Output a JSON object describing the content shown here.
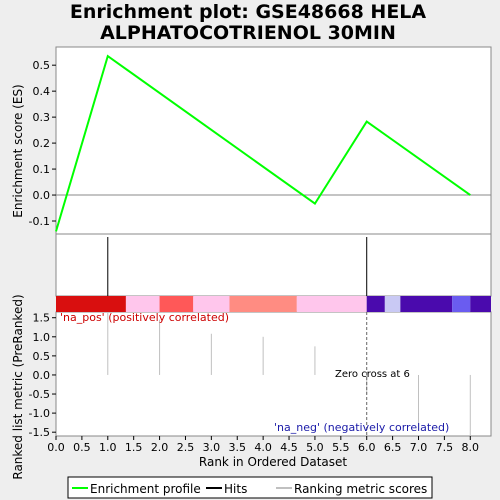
{
  "title_line1": "Enrichment plot: GSE48668 HELA",
  "title_line2": "ALPHATOCOTRIENOL 30MIN",
  "chart_data": {
    "type": "line",
    "title": "Enrichment plot: GSE48668 HELA ALPHATOCOTRIENOL 30MIN",
    "xlabel": "Rank in Ordered Dataset",
    "xlim": [
      0,
      8.4
    ],
    "x_ticks": [
      "0.0",
      "0.5",
      "1.0",
      "1.5",
      "2.0",
      "2.5",
      "3.0",
      "3.5",
      "4.0",
      "4.5",
      "5.0",
      "5.5",
      "6.0",
      "6.5",
      "7.0",
      "7.5",
      "8.0"
    ],
    "enrichment": {
      "ylabel": "Enrichment score (ES)",
      "ylim": [
        -0.15,
        0.57
      ],
      "y_ticks": [
        "0.5",
        "0.4",
        "0.3",
        "0.2",
        "0.1",
        "0.0",
        "-0.1"
      ],
      "series": [
        {
          "name": "Enrichment profile",
          "color": "#00ff00",
          "x": [
            0,
            1,
            5,
            6,
            8
          ],
          "y": [
            -0.14,
            0.535,
            -0.033,
            0.283,
            0.0
          ]
        }
      ]
    },
    "hits": {
      "x": [
        1,
        6
      ],
      "color": "#000000"
    },
    "color_bar": [
      {
        "x0": 0.0,
        "x1": 1.35,
        "color": "#d90f0f"
      },
      {
        "x0": 1.35,
        "x1": 2.0,
        "color": "#ffc6ec"
      },
      {
        "x0": 2.0,
        "x1": 2.65,
        "color": "#ff5858"
      },
      {
        "x0": 2.65,
        "x1": 3.35,
        "color": "#ffc6ec"
      },
      {
        "x0": 3.35,
        "x1": 4.65,
        "color": "#ff8c82"
      },
      {
        "x0": 4.65,
        "x1": 6.0,
        "color": "#ffc6ec"
      },
      {
        "x0": 6.0,
        "x1": 6.35,
        "color": "#4a0aad"
      },
      {
        "x0": 6.35,
        "x1": 6.65,
        "color": "#c9c9f4"
      },
      {
        "x0": 6.65,
        "x1": 7.65,
        "color": "#4a0aad"
      },
      {
        "x0": 7.65,
        "x1": 8.0,
        "color": "#6a5cf0"
      },
      {
        "x0": 8.0,
        "x1": 8.4,
        "color": "#4a0aad"
      }
    ],
    "ranked_metric": {
      "ylabel": "Ranked list metric (PreRanked)",
      "ylim": [
        -1.6,
        1.65
      ],
      "y_ticks": [
        "1.5",
        "1.0",
        "0.5",
        "0.0",
        "-0.5",
        "-1.0",
        "-1.5"
      ],
      "bars": [
        {
          "x": 1,
          "value": 1.75
        },
        {
          "x": 2,
          "value": 1.45
        },
        {
          "x": 3,
          "value": 1.08
        },
        {
          "x": 4,
          "value": 1.0
        },
        {
          "x": 5,
          "value": 0.75
        },
        {
          "x": 6,
          "value": -0.5
        },
        {
          "x": 7,
          "value": -1.45
        },
        {
          "x": 8,
          "value": -1.6
        }
      ],
      "zero_cross_x": 6
    },
    "annotations": {
      "pos": "'na_pos' (positively correlated)",
      "neg": "'na_neg' (negatively correlated)",
      "zero_cross": "Zero cross at 6"
    },
    "legend": {
      "placement": "bottom",
      "items": [
        {
          "label": "Enrichment profile",
          "color": "#00ff00"
        },
        {
          "label": "Hits",
          "color": "#000000"
        },
        {
          "label": "Ranking metric scores",
          "color": "#c0c0c0"
        }
      ]
    }
  }
}
